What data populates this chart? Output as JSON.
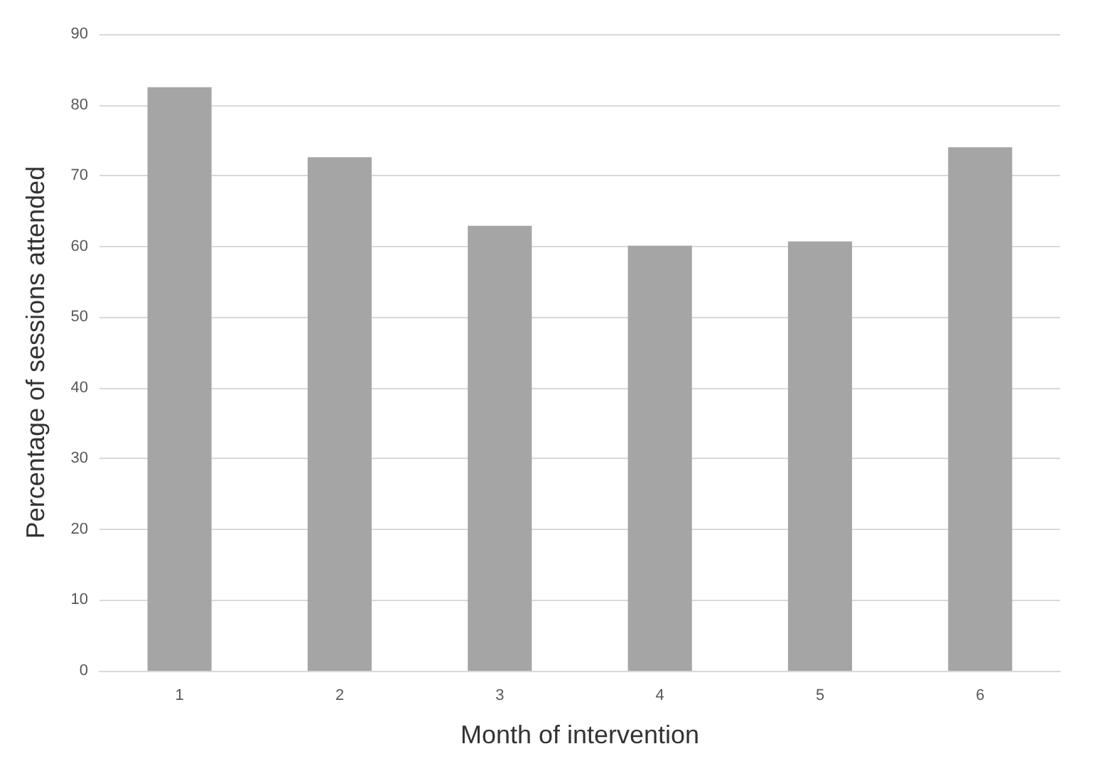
{
  "chart_data": {
    "type": "bar",
    "xlabel": "Month of intervention",
    "ylabel": "Percentage of sessions attended",
    "categories": [
      "1",
      "2",
      "3",
      "4",
      "5",
      "6"
    ],
    "values": [
      82.5,
      72.6,
      62.9,
      60.1,
      60.7,
      74.0
    ],
    "color": "#a5a5a5",
    "ylim": [
      0,
      90
    ],
    "yticks": [
      0,
      10,
      20,
      30,
      40,
      50,
      60,
      70,
      80,
      90
    ],
    "grid": "y"
  }
}
